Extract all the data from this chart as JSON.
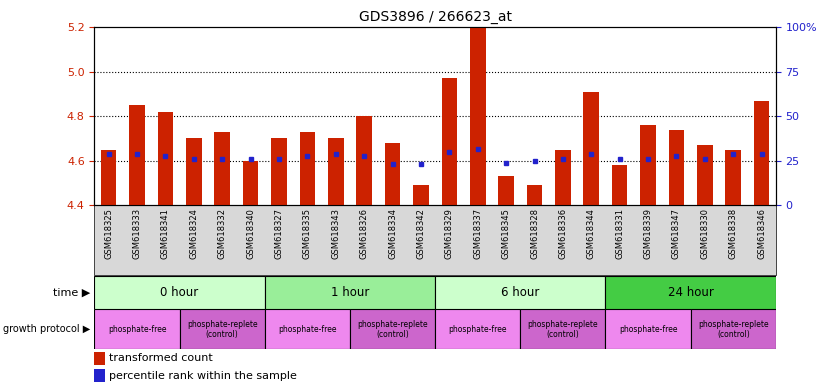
{
  "title": "GDS3896 / 266623_at",
  "samples": [
    "GSM618325",
    "GSM618333",
    "GSM618341",
    "GSM618324",
    "GSM618332",
    "GSM618340",
    "GSM618327",
    "GSM618335",
    "GSM618343",
    "GSM618326",
    "GSM618334",
    "GSM618342",
    "GSM618329",
    "GSM618337",
    "GSM618345",
    "GSM618328",
    "GSM618336",
    "GSM618344",
    "GSM618331",
    "GSM618339",
    "GSM618347",
    "GSM618330",
    "GSM618338",
    "GSM618346"
  ],
  "transformed_count": [
    4.65,
    4.85,
    4.82,
    4.7,
    4.73,
    4.6,
    4.7,
    4.73,
    4.7,
    4.8,
    4.68,
    4.49,
    4.97,
    5.22,
    4.53,
    4.49,
    4.65,
    4.91,
    4.58,
    4.76,
    4.74,
    4.67,
    4.65,
    4.87
  ],
  "percentile_rank": [
    4.63,
    4.63,
    4.62,
    4.61,
    4.61,
    4.61,
    4.61,
    4.62,
    4.63,
    4.62,
    4.585,
    4.585,
    4.64,
    4.655,
    4.59,
    4.6,
    4.61,
    4.63,
    4.61,
    4.61,
    4.62,
    4.61,
    4.63,
    4.63
  ],
  "ylim_left": [
    4.4,
    5.2
  ],
  "ylim_right": [
    0,
    100
  ],
  "yticks_left": [
    4.4,
    4.6,
    4.8,
    5.0,
    5.2
  ],
  "yticks_right": [
    0,
    25,
    50,
    75,
    100
  ],
  "ytick_right_labels": [
    "0",
    "25",
    "50",
    "75",
    "100%"
  ],
  "hlines": [
    4.6,
    4.8,
    5.0
  ],
  "bar_color": "#cc2200",
  "dot_color": "#2222cc",
  "title_color": "#000000",
  "left_tick_color": "#cc2200",
  "right_tick_color": "#2222cc",
  "xticklabel_bg": "#d8d8d8",
  "time_labels": [
    "0 hour",
    "1 hour",
    "6 hour",
    "24 hour"
  ],
  "time_colors": [
    "#ccffcc",
    "#99ee99",
    "#ccffcc",
    "#44cc44"
  ],
  "time_starts": [
    0,
    6,
    12,
    18
  ],
  "time_ends": [
    6,
    12,
    18,
    24
  ],
  "prot_labels": [
    "phosphate-free",
    "phosphate-replete\n(control)",
    "phosphate-free",
    "phosphate-replete\n(control)",
    "phosphate-free",
    "phosphate-replete\n(control)",
    "phosphate-free",
    "phosphate-replete\n(control)"
  ],
  "prot_colors": [
    "#ee88ee",
    "#cc66cc",
    "#ee88ee",
    "#cc66cc",
    "#ee88ee",
    "#cc66cc",
    "#ee88ee",
    "#cc66cc"
  ],
  "prot_starts": [
    0,
    3,
    6,
    9,
    12,
    15,
    18,
    21
  ],
  "prot_ends": [
    3,
    6,
    9,
    12,
    15,
    18,
    21,
    24
  ]
}
